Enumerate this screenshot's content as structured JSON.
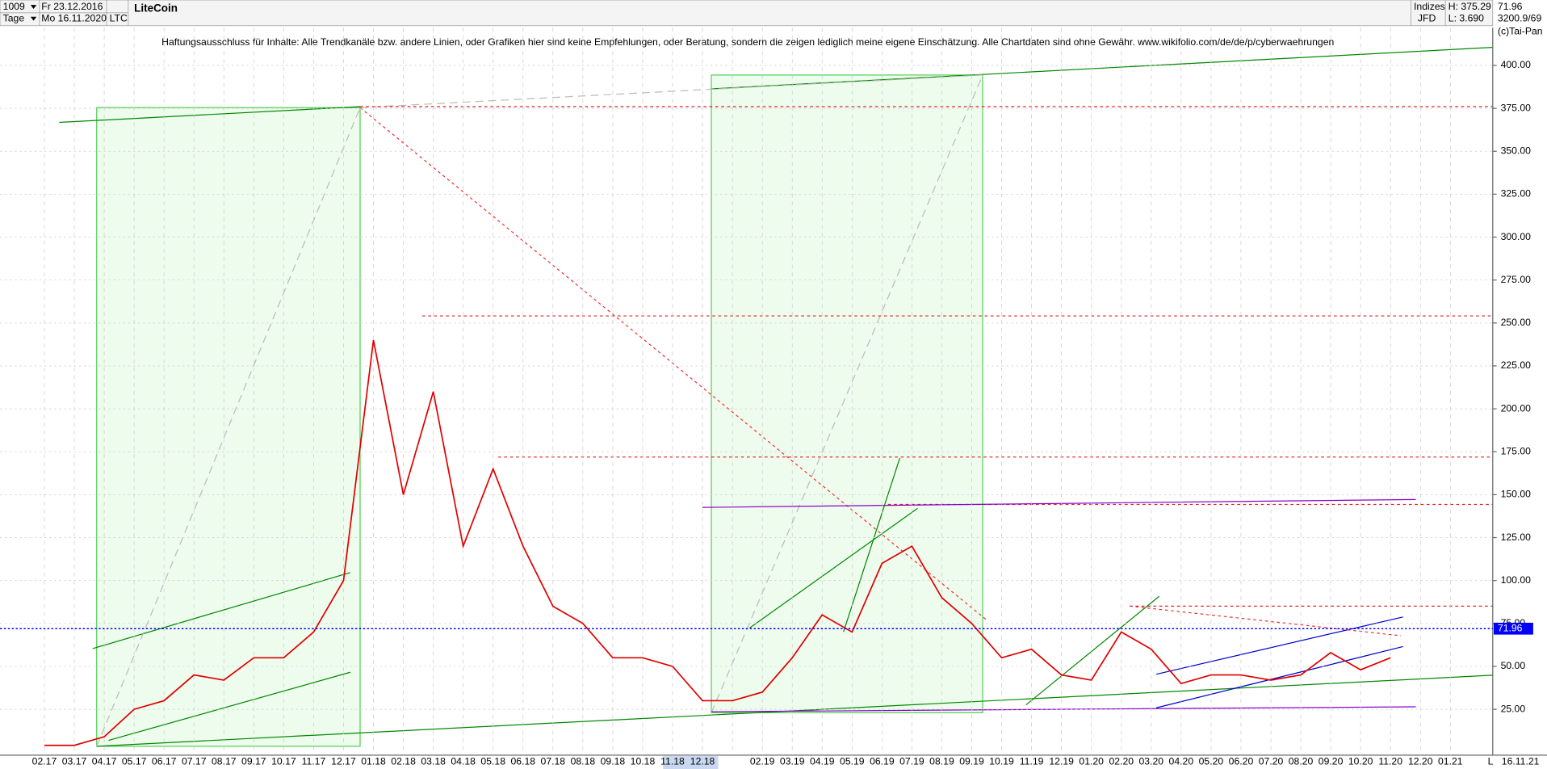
{
  "header": {
    "count": "1009",
    "start_date": "Fr 23.12.2016",
    "period": "Tage",
    "end_date": "Mo 16.11.2020",
    "symbol": "LTC",
    "market": "Indizes",
    "broker": "JFD",
    "high": "H: 375.29",
    "low": "L: 3.690",
    "info": "3200.9/69",
    "copyright": "(c)Tai-Pan",
    "scale_mode": "L",
    "axis_date": "16.11.21"
  },
  "chart_data": {
    "type": "line",
    "title": "LiteCoin",
    "subtitle": "Haftungsausschluss für Inhalte: Alle Trendkanäle bzw. andere Linien, oder Grafiken hier sind keine Empfehlungen, oder Beratung, sondern die zeigen lediglich meine eigene Einschätzung. Alle Chartdaten sind ohne Gewähr.  www.wikifolio.com/de/de/p/cyberwaehrungen",
    "categories": [
      "02.17",
      "03.17",
      "04.17",
      "05.17",
      "06.17",
      "07.17",
      "08.17",
      "09.17",
      "10.17",
      "11.17",
      "12.17",
      "01.18",
      "02.18",
      "03.18",
      "04.18",
      "05.18",
      "06.18",
      "07.18",
      "08.18",
      "09.18",
      "10.18",
      "11.18",
      "12.18",
      null,
      "02.19",
      "03.19",
      "04.19",
      "05.19",
      "06.19",
      "07.19",
      "08.19",
      "09.19",
      "10.19",
      "11.19",
      "12.19",
      "01.20",
      "02.20",
      "03.20",
      "04.20",
      "05.20",
      "06.20",
      "07.20",
      "08.20",
      "09.20",
      "10.20",
      "11.20",
      "12.20",
      "01.21"
    ],
    "series": [
      {
        "name": "LiteCoin",
        "color": "#e00000",
        "values": [
          4,
          4,
          9,
          25,
          30,
          45,
          42,
          55,
          55,
          70,
          100,
          240,
          150,
          210,
          120,
          165,
          120,
          85,
          75,
          55,
          55,
          50,
          30,
          30,
          35,
          55,
          80,
          70,
          110,
          120,
          90,
          75,
          55,
          60,
          45,
          42,
          70,
          60,
          40,
          45,
          45,
          42,
          45,
          58,
          48,
          55,
          null,
          null
        ]
      }
    ],
    "last_price": 71.96,
    "ylim": [
      0,
      422
    ],
    "yticks": [
      {
        "value": 25,
        "label": "25.00"
      },
      {
        "value": 50,
        "label": "50.00"
      },
      {
        "value": 75,
        "label": "75.00"
      },
      {
        "value": 100,
        "label": "100.00"
      },
      {
        "value": 125,
        "label": "125.00"
      },
      {
        "value": 150,
        "label": "150.00"
      },
      {
        "value": 175,
        "label": "175.00"
      },
      {
        "value": 200,
        "label": "200.00"
      },
      {
        "value": 225,
        "label": "225.00"
      },
      {
        "value": 250,
        "label": "250.00"
      },
      {
        "value": 275,
        "label": "275.00"
      },
      {
        "value": 300,
        "label": "300.00"
      },
      {
        "value": 325,
        "label": "325.00"
      },
      {
        "value": 350,
        "label": "350.00"
      },
      {
        "value": 375,
        "label": "375.00"
      },
      {
        "value": 400,
        "label": "400.00"
      }
    ],
    "grid": true
  }
}
